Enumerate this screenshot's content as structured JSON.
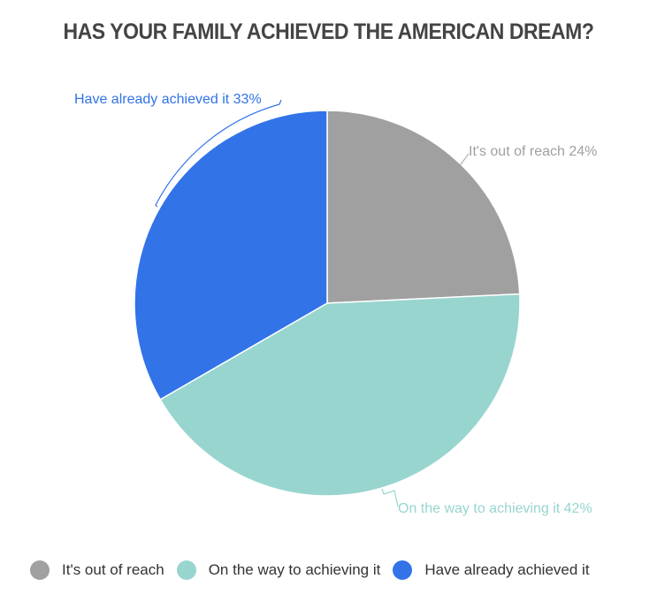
{
  "title": "HAS YOUR FAMILY ACHIEVED THE AMERICAN DREAM?",
  "chart_data": {
    "type": "pie",
    "title": "HAS YOUR FAMILY ACHIEVED THE AMERICAN DREAM?",
    "categories": [
      "It's out of reach",
      "On the way to achieving it",
      "Have already achieved it"
    ],
    "values": [
      24,
      42,
      33
    ],
    "unit": "%",
    "colors": [
      "#a0a0a0",
      "#98d5cf",
      "#3273e8"
    ],
    "start_angle": "12 o'clock, clockwise",
    "data_labels": [
      "It's out of reach 24%",
      "On the way to achieving it 42%",
      "Have already achieved it 33%"
    ],
    "legend_position": "bottom"
  },
  "labels": {
    "out_of_reach": "It's out of reach 24%",
    "on_the_way": "On the way to achieving it 42%",
    "achieved": "Have already achieved it 33%"
  },
  "legend": [
    {
      "label": "It's out of reach",
      "color": "#a0a0a0"
    },
    {
      "label": "On the way to achieving it",
      "color": "#98d5cf"
    },
    {
      "label": "Have already achieved it",
      "color": "#3273e8"
    }
  ]
}
